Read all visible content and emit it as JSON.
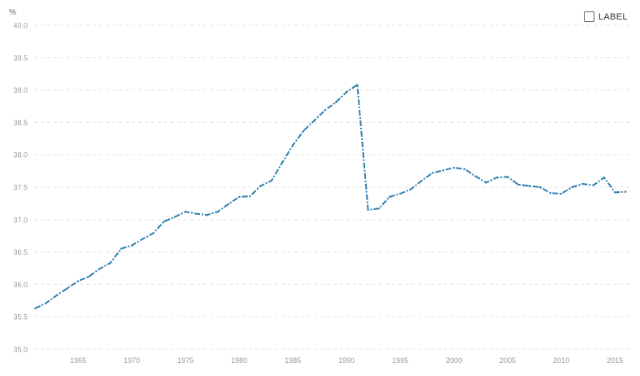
{
  "legend_toggle": {
    "label": "LABEL",
    "checked": false
  },
  "colors": {
    "line": "#2e7fb0",
    "grid": "#e3e3e3",
    "tick_text": "#999999"
  },
  "chart_data": {
    "type": "line",
    "title": "",
    "xlabel": "",
    "ylabel": "%",
    "xlim": [
      1961,
      2016
    ],
    "ylim": [
      35.0,
      40.0
    ],
    "x_ticks": [
      1965,
      1970,
      1975,
      1980,
      1985,
      1990,
      1995,
      2000,
      2005,
      2010,
      2015
    ],
    "y_ticks": [
      35.0,
      35.5,
      36.0,
      36.5,
      37.0,
      37.5,
      38.0,
      38.5,
      39.0,
      39.5,
      40.0
    ],
    "grid": "horizontal-dashed",
    "series": [
      {
        "name": "",
        "line_style": "dash-dot",
        "x": [
          1961,
          1962,
          1963,
          1964,
          1965,
          1966,
          1967,
          1968,
          1969,
          1970,
          1971,
          1972,
          1973,
          1974,
          1975,
          1976,
          1977,
          1978,
          1979,
          1980,
          1981,
          1982,
          1983,
          1984,
          1985,
          1986,
          1987,
          1988,
          1989,
          1990,
          1991,
          1992,
          1993,
          1994,
          1995,
          1996,
          1997,
          1998,
          1999,
          2000,
          2001,
          2002,
          2003,
          2004,
          2005,
          2006,
          2007,
          2008,
          2009,
          2010,
          2011,
          2012,
          2013,
          2014,
          2015,
          2016
        ],
        "y": [
          35.63,
          35.71,
          35.83,
          35.94,
          36.05,
          36.12,
          36.24,
          36.33,
          36.55,
          36.6,
          36.7,
          36.79,
          36.97,
          37.04,
          37.12,
          37.09,
          37.07,
          37.12,
          37.24,
          37.35,
          37.36,
          37.52,
          37.6,
          37.88,
          38.15,
          38.37,
          38.53,
          38.69,
          38.81,
          38.97,
          39.08,
          37.15,
          37.17,
          37.35,
          37.4,
          37.47,
          37.6,
          37.72,
          37.76,
          37.8,
          37.78,
          37.67,
          37.57,
          37.65,
          37.66,
          37.54,
          37.52,
          37.5,
          37.41,
          37.4,
          37.5,
          37.55,
          37.53,
          37.65,
          37.42,
          37.43
        ]
      }
    ]
  }
}
